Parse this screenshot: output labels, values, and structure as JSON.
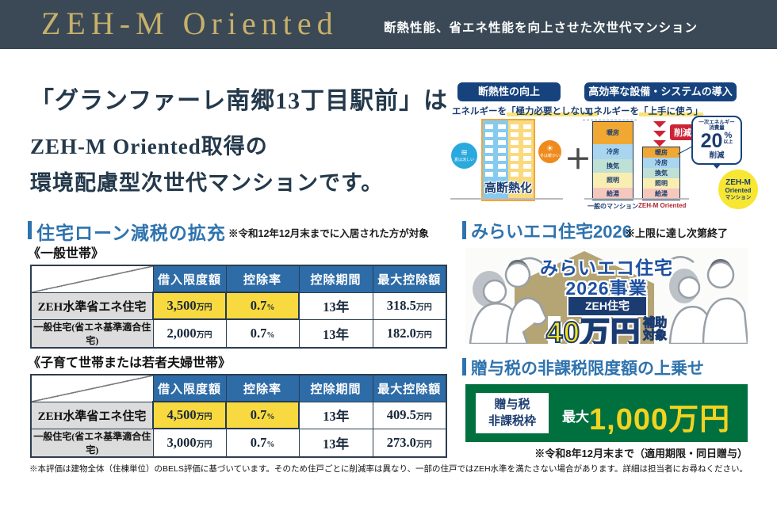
{
  "header": {
    "title": "ZEH-M Oriented",
    "subtitle": "断熱性能、省エネ性能を向上させた次世代マンション"
  },
  "intro": {
    "line1": "「グランファーレ南郷13丁目駅前」は",
    "line2": "ZEH-M Oriented取得の",
    "line3": "環境配慮型次世代マンションです。"
  },
  "diagram": {
    "insulation": {
      "title": "断熱性の向上",
      "subtitle_prefix": "エネルギーを",
      "subtitle_marked": "「極力必要としない」",
      "cool_glyph": "≋",
      "cool_label": "夏は涼しい",
      "warm_glyph": "☀",
      "warm_label": "冬は暖かい",
      "building_label": "高断熱化",
      "plus": "＋"
    },
    "efficiency": {
      "title": "高効率な設備・システムの導入",
      "subtitle_prefix": "エネルギーを",
      "subtitle_marked": "「上手に使う」",
      "segments": [
        {
          "label": "暖房",
          "color": "#f0a832"
        },
        {
          "label": "冷房",
          "color": "#a9d6ee"
        },
        {
          "label": "換気",
          "color": "#bfe0d4"
        },
        {
          "label": "照明",
          "color": "#f9eeb2"
        },
        {
          "label": "給湯",
          "color": "#f6c8bd"
        }
      ],
      "bars": [
        {
          "label": "一般のマンション",
          "heights": [
            28,
            19,
            17,
            19,
            15
          ]
        },
        {
          "label": "ZEH-M Oriented",
          "heights": [
            13,
            13,
            13,
            13,
            14
          ]
        }
      ],
      "reduction_label": "削減",
      "callout": {
        "line1": "一次エネルギー",
        "line2": "消費量",
        "value": "20",
        "unit": "%",
        "suffix": "以上",
        "action": "削減"
      },
      "badge_circle": {
        "line1": "ZEH-M",
        "line2": "Oriented",
        "line3": "マンション"
      }
    }
  },
  "loan": {
    "title": "住宅ローン減税の拡充",
    "note": "※令和12年12月末までに入居された方が対象",
    "col_headers": [
      "借入限度額",
      "控除率",
      "控除期間",
      "最大控除額"
    ],
    "tables": [
      {
        "caption": "《一般世帯》",
        "rows": [
          {
            "label": "ZEH水準省エネ住宅",
            "highlight": true,
            "cells": [
              {
                "v": "3,500",
                "u": "万円"
              },
              {
                "v": "0.7",
                "u": "%"
              },
              {
                "v": "13年",
                "u": ""
              },
              {
                "v": "318.5",
                "u": "万円"
              }
            ]
          },
          {
            "label": "一般住宅(省エネ基準適合住宅)",
            "highlight": false,
            "cells": [
              {
                "v": "2,000",
                "u": "万円"
              },
              {
                "v": "0.7",
                "u": "%"
              },
              {
                "v": "13年",
                "u": ""
              },
              {
                "v": "182.0",
                "u": "万円"
              }
            ]
          }
        ]
      },
      {
        "caption": "《子育て世帯または若者夫婦世帯》",
        "rows": [
          {
            "label": "ZEH水準省エネ住宅",
            "highlight": true,
            "cells": [
              {
                "v": "4,500",
                "u": "万円"
              },
              {
                "v": "0.7",
                "u": "%"
              },
              {
                "v": "13年",
                "u": ""
              },
              {
                "v": "409.5",
                "u": "万円"
              }
            ]
          },
          {
            "label": "一般住宅(省エネ基準適合住宅)",
            "highlight": false,
            "cells": [
              {
                "v": "3,000",
                "u": "万円"
              },
              {
                "v": "0.7",
                "u": "%"
              },
              {
                "v": "13年",
                "u": ""
              },
              {
                "v": "273.0",
                "u": "万円"
              }
            ]
          }
        ]
      }
    ]
  },
  "mirai": {
    "title": "みらいエコ住宅2026",
    "note": "※上限に達し次第終了",
    "banner": {
      "line1": "みらいエコ住宅",
      "line2": "2026事業",
      "tag": "ZEH住宅",
      "amount": "40万円",
      "badge_top": "補助",
      "badge_bottom": "対象"
    }
  },
  "gift": {
    "title": "贈与税の非課税限度額の上乗せ",
    "box_line1": "贈与税",
    "box_line2": "非課税枠",
    "max_label": "最大",
    "amount": "1,000万円",
    "note": "※令和8年12月末まで（適用期限・同日贈与）"
  },
  "footnote": "※本評価は建物全体（住棟単位）のBELS評価に基づいています。そのため住戸ごとに削減率は異なり、一部の住戸ではZEH水準を満たさない場合があります。詳細は担当者にお尋ねください。",
  "colors": {
    "header_bg": "#3a4955",
    "header_gold": "#c8b06a",
    "headline_navy": "#24394b",
    "pill_navy": "#16437e",
    "section_blue": "#2e73ae",
    "table_header_blue": "#2e6ca8",
    "highlight_yellow": "#f8d93f",
    "row_label_gray": "#dcdcdc",
    "reduction_red": "#ce2336",
    "zehm_circle_yellow": "#f7e733",
    "green_banner": "#00703f",
    "money_yellow": "#f2d320",
    "banner_blue": "#1d50a0",
    "house_tan": "#b5a474"
  }
}
